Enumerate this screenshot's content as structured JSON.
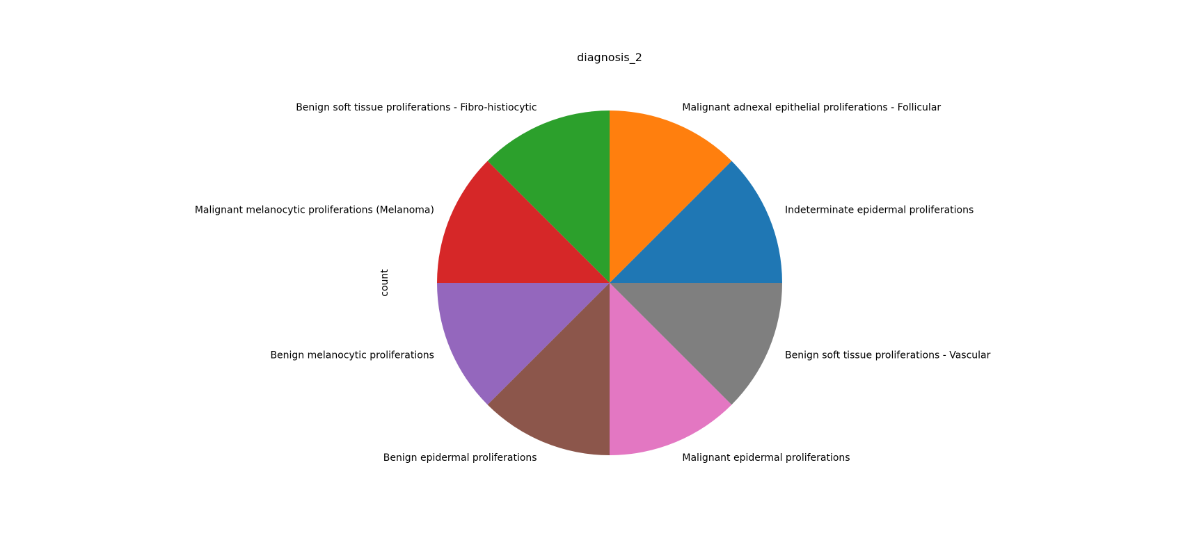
{
  "chart_data": {
    "type": "pie",
    "title": "diagnosis_2",
    "ylabel": "count",
    "start_angle_deg": 0,
    "direction": "counterclockwise",
    "slices": [
      {
        "label": "Indeterminate epidermal proliferations",
        "value": 1,
        "color": "#1f77b4"
      },
      {
        "label": "Malignant adnexal epithelial proliferations - Follicular",
        "value": 1,
        "color": "#ff7f0e"
      },
      {
        "label": "Benign soft tissue proliferations - Fibro-histiocytic",
        "value": 1,
        "color": "#2ca02c"
      },
      {
        "label": "Malignant melanocytic proliferations (Melanoma)",
        "value": 1,
        "color": "#d62728"
      },
      {
        "label": "Benign melanocytic proliferations",
        "value": 1,
        "color": "#9467bd"
      },
      {
        "label": "Benign epidermal proliferations",
        "value": 1,
        "color": "#8c564b"
      },
      {
        "label": "Malignant epidermal proliferations",
        "value": 1,
        "color": "#e377c2"
      },
      {
        "label": "Benign soft tissue proliferations - Vascular",
        "value": 1,
        "color": "#7f7f7f"
      }
    ]
  }
}
